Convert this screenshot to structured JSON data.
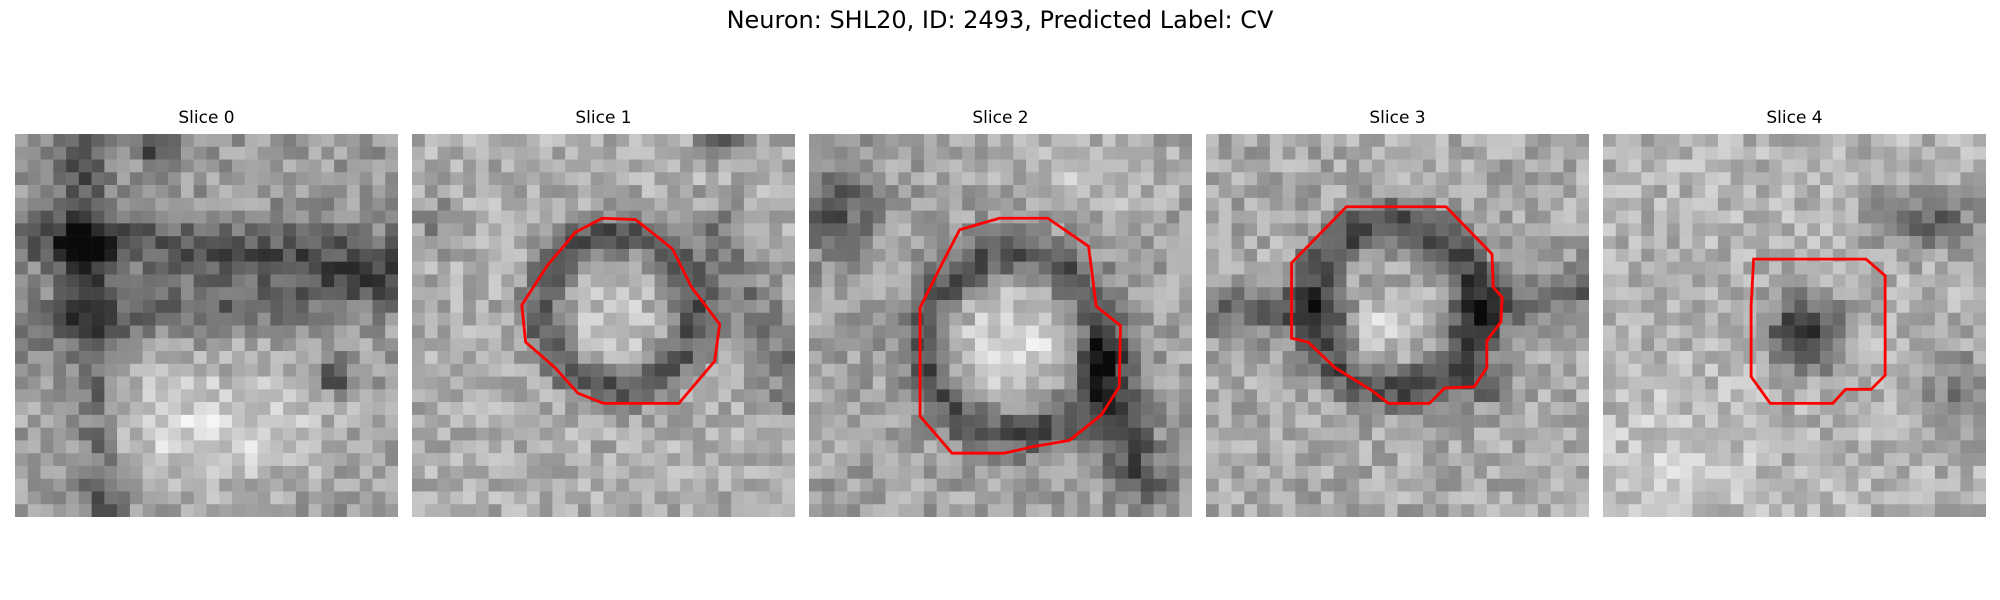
{
  "figure": {
    "title": "Neuron: SHL20, ID: 2493, Predicted Label: CV"
  },
  "panels": [
    {
      "title": "Slice 0",
      "has_contour": false
    },
    {
      "title": "Slice 1",
      "has_contour": true
    },
    {
      "title": "Slice 2",
      "has_contour": true
    },
    {
      "title": "Slice 3",
      "has_contour": true
    },
    {
      "title": "Slice 4",
      "has_contour": true
    }
  ],
  "colors": {
    "contour": "#ff0000",
    "colormap": "gray"
  }
}
